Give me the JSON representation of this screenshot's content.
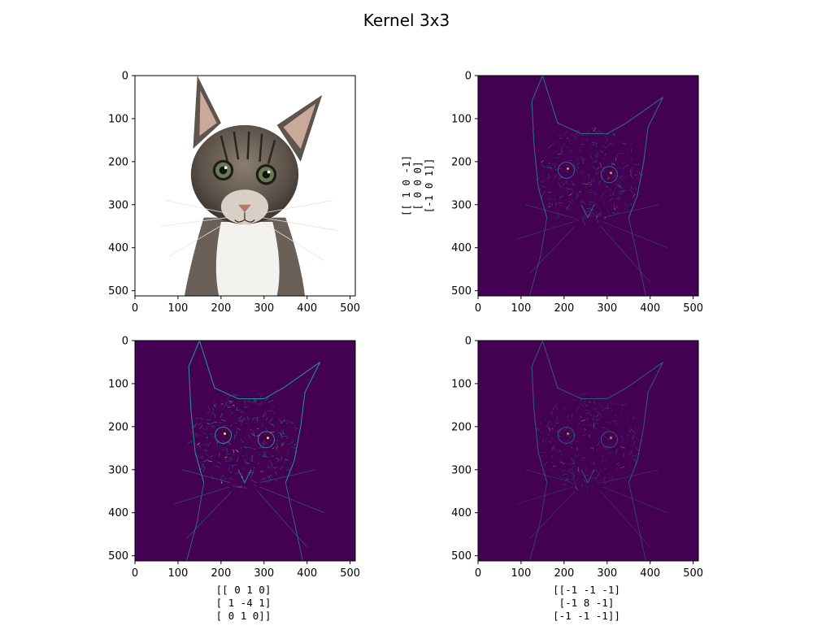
{
  "figure": {
    "title": "Kernel 3x3"
  },
  "colors": {
    "background": "#ffffff",
    "viridis_low": "#440154",
    "viridis_mid": "#21918c",
    "viridis_high": "#fde725"
  },
  "chart_data": [
    {
      "type": "heatmap",
      "id": "original",
      "content": "cat photo",
      "xlim": [
        0,
        512
      ],
      "ylim": [
        512,
        0
      ],
      "xticks": [
        0,
        100,
        200,
        300,
        400,
        500
      ],
      "yticks": [
        0,
        100,
        200,
        300,
        400,
        500
      ],
      "kernel_label": []
    },
    {
      "type": "heatmap",
      "id": "kernel-a",
      "colormap": "viridis",
      "xlim": [
        0,
        512
      ],
      "ylim": [
        512,
        0
      ],
      "xticks": [
        0,
        100,
        200,
        300,
        400,
        500
      ],
      "yticks": [
        0,
        100,
        200,
        300,
        400,
        500
      ],
      "kernel": [
        [
          1,
          0,
          -1
        ],
        [
          0,
          0,
          0
        ],
        [
          -1,
          0,
          1
        ]
      ],
      "kernel_label_position": "left",
      "kernel_label": [
        "[[ 1  0 -1]",
        " [ 0  0  0]",
        " [-1  0  1]]"
      ]
    },
    {
      "type": "heatmap",
      "id": "kernel-b",
      "colormap": "viridis",
      "xlim": [
        0,
        512
      ],
      "ylim": [
        512,
        0
      ],
      "xticks": [
        0,
        100,
        200,
        300,
        400,
        500
      ],
      "yticks": [
        0,
        100,
        200,
        300,
        400,
        500
      ],
      "kernel": [
        [
          0,
          1,
          0
        ],
        [
          1,
          -4,
          1
        ],
        [
          0,
          1,
          0
        ]
      ],
      "kernel_label_position": "bottom",
      "kernel_label": [
        "[[ 0  1  0]",
        " [ 1 -4  1]",
        " [ 0  1  0]]"
      ]
    },
    {
      "type": "heatmap",
      "id": "kernel-c",
      "colormap": "viridis",
      "xlim": [
        0,
        512
      ],
      "ylim": [
        512,
        0
      ],
      "xticks": [
        0,
        100,
        200,
        300,
        400,
        500
      ],
      "yticks": [
        0,
        100,
        200,
        300,
        400,
        500
      ],
      "kernel": [
        [
          -1,
          -1,
          -1
        ],
        [
          -1,
          8,
          -1
        ],
        [
          -1,
          -1,
          -1
        ]
      ],
      "kernel_label_position": "bottom",
      "kernel_label": [
        "[[-1 -1 -1]",
        " [-1  8 -1]",
        " [-1 -1 -1]]"
      ]
    }
  ]
}
